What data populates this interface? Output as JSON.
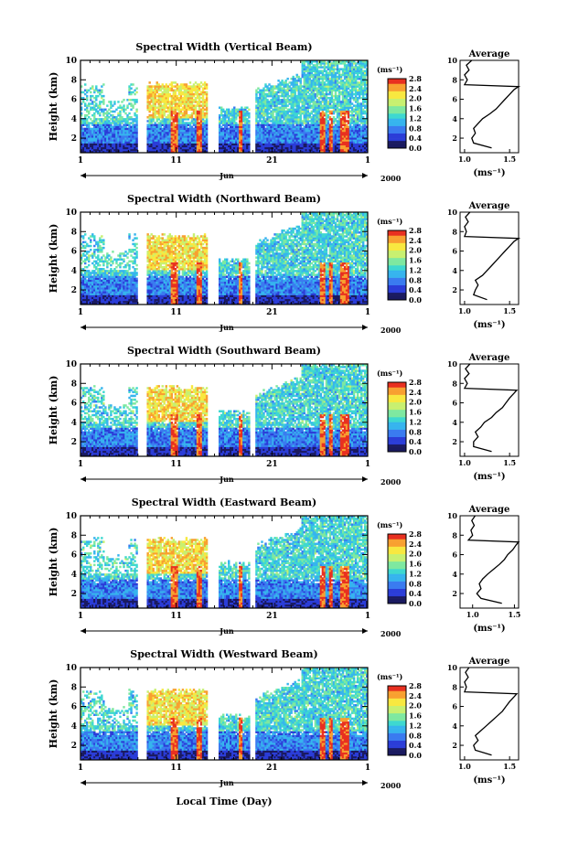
{
  "figure": {
    "xlabel": "Local Time (Day)",
    "panel_ylabel": "Height (km)",
    "month_label": "Jun",
    "year_label": "2000",
    "x_tick_labels": [
      "1",
      "11",
      "21",
      "1"
    ],
    "y_tick_labels": [
      "2",
      "4",
      "6",
      "8",
      "10"
    ],
    "colorbar_unit": "(ms⁻¹)",
    "colorbar_tick_labels": [
      "0.0",
      "0.4",
      "0.8",
      "1.2",
      "1.6",
      "2.0",
      "2.4",
      "2.8"
    ],
    "average_title": "Average",
    "average_xlabel": "(ms⁻¹)",
    "average_x_tick_labels": [
      "1.0",
      "1.5"
    ],
    "colormap": [
      "#1a1a60",
      "#2b3dd8",
      "#3a7bf0",
      "#36b4ee",
      "#3ed8d0",
      "#7ee8a0",
      "#c8f070",
      "#f8e840",
      "#f8a030",
      "#e83020"
    ]
  },
  "chart_data": [
    {
      "type": "heatmap",
      "title": "Spectral Width (Vertical Beam)",
      "xlabel": "Local Time (Day)",
      "ylabel": "Height (km)",
      "x_range_days": [
        1,
        31
      ],
      "ylim": [
        0.5,
        10
      ],
      "colorbar_range": [
        0.0,
        2.8
      ],
      "average_profile": {
        "title": "Average",
        "xlim": [
          0.95,
          1.6
        ],
        "heights_km": [
          1.0,
          1.5,
          2.0,
          2.5,
          3.0,
          3.5,
          4.0,
          4.5,
          5.0,
          5.5,
          6.0,
          6.5,
          7.0,
          7.3,
          7.5,
          8.0,
          8.5,
          9.0,
          9.5,
          10.0
        ],
        "values": [
          1.3,
          1.1,
          1.08,
          1.12,
          1.1,
          1.15,
          1.2,
          1.28,
          1.35,
          1.4,
          1.45,
          1.5,
          1.55,
          1.6,
          1.0,
          1.03,
          1.0,
          1.05,
          1.02,
          1.08
        ]
      }
    },
    {
      "type": "heatmap",
      "title": "Spectral Width (Northward Beam)",
      "xlabel": "Local Time (Day)",
      "ylabel": "Height (km)",
      "x_range_days": [
        1,
        31
      ],
      "ylim": [
        0.5,
        10
      ],
      "colorbar_range": [
        0.0,
        2.8
      ],
      "average_profile": {
        "title": "Average",
        "xlim": [
          0.95,
          1.6
        ],
        "heights_km": [
          1.0,
          1.5,
          2.0,
          2.5,
          3.0,
          3.5,
          4.0,
          4.5,
          5.0,
          5.5,
          6.0,
          6.5,
          7.0,
          7.3,
          7.5,
          8.0,
          8.5,
          9.0,
          9.5,
          10.0
        ],
        "values": [
          1.25,
          1.1,
          1.12,
          1.15,
          1.12,
          1.2,
          1.25,
          1.3,
          1.35,
          1.4,
          1.45,
          1.5,
          1.55,
          1.6,
          1.0,
          1.02,
          1.0,
          1.04,
          1.01,
          1.06
        ]
      }
    },
    {
      "type": "heatmap",
      "title": "Spectral Width (Southward Beam)",
      "xlabel": "Local Time (Day)",
      "ylabel": "Height (km)",
      "x_range_days": [
        1,
        31
      ],
      "ylim": [
        0.5,
        10
      ],
      "colorbar_range": [
        0.0,
        2.8
      ],
      "average_profile": {
        "title": "Average",
        "xlim": [
          0.95,
          1.6
        ],
        "heights_km": [
          1.0,
          1.5,
          2.0,
          2.5,
          3.0,
          3.5,
          4.0,
          4.5,
          5.0,
          5.5,
          6.0,
          6.5,
          7.0,
          7.3,
          7.5,
          8.0,
          8.5,
          9.0,
          9.5,
          10.0
        ],
        "values": [
          1.3,
          1.1,
          1.1,
          1.15,
          1.12,
          1.18,
          1.22,
          1.3,
          1.35,
          1.42,
          1.46,
          1.5,
          1.55,
          1.58,
          1.0,
          1.03,
          1.0,
          1.05,
          1.01,
          1.06
        ]
      }
    },
    {
      "type": "heatmap",
      "title": "Spectral Width (Eastward Beam)",
      "xlabel": "Local Time (Day)",
      "ylabel": "Height (km)",
      "x_range_days": [
        1,
        31
      ],
      "ylim": [
        0.5,
        10
      ],
      "colorbar_range": [
        0.0,
        2.8
      ],
      "average_profile": {
        "title": "Average",
        "xlim": [
          0.85,
          1.55
        ],
        "heights_km": [
          1.0,
          1.5,
          2.0,
          2.5,
          3.0,
          3.5,
          4.0,
          4.5,
          5.0,
          5.5,
          6.0,
          6.5,
          7.0,
          7.3,
          7.5,
          8.0,
          8.5,
          9.0,
          9.5,
          10.0
        ],
        "values": [
          1.35,
          1.1,
          1.05,
          1.1,
          1.08,
          1.12,
          1.18,
          1.25,
          1.32,
          1.38,
          1.42,
          1.48,
          1.52,
          1.55,
          0.95,
          1.0,
          0.98,
          1.02,
          0.99,
          1.03
        ]
      }
    },
    {
      "type": "heatmap",
      "title": "Spectral Width (Westward Beam)",
      "xlabel": "Local Time (Day)",
      "ylabel": "Height (km)",
      "x_range_days": [
        1,
        31
      ],
      "ylim": [
        0.5,
        10
      ],
      "colorbar_range": [
        0.0,
        2.8
      ],
      "average_profile": {
        "title": "Average",
        "xlim": [
          0.95,
          1.6
        ],
        "heights_km": [
          1.0,
          1.5,
          2.0,
          2.5,
          3.0,
          3.5,
          4.0,
          4.5,
          5.0,
          5.5,
          6.0,
          6.5,
          7.0,
          7.3,
          7.5,
          8.0,
          8.5,
          9.0,
          9.5,
          10.0
        ],
        "values": [
          1.3,
          1.12,
          1.1,
          1.15,
          1.12,
          1.18,
          1.24,
          1.3,
          1.36,
          1.42,
          1.46,
          1.5,
          1.55,
          1.58,
          1.0,
          1.02,
          1.0,
          1.04,
          1.01,
          1.05
        ]
      }
    }
  ]
}
